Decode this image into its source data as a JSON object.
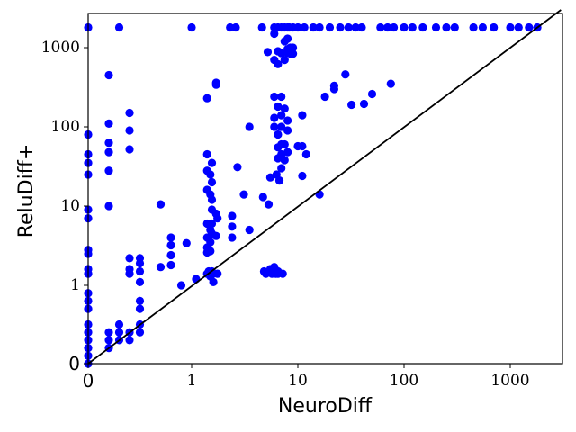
{
  "chart_data": {
    "type": "scatter",
    "title": "",
    "xlabel": "NeuroDiff",
    "ylabel": "ReluDiff+",
    "xscale": "symlog-style (linear 0 to 1, log above 1)",
    "yscale": "symlog-style (linear 0 to 1, log above 1)",
    "xlim": [
      0,
      3000
    ],
    "ylim": [
      0,
      3000
    ],
    "x_ticks": [
      "0",
      "1",
      "10",
      "100",
      "1000"
    ],
    "y_ticks": [
      "0",
      "1",
      "10",
      "100",
      "1000"
    ],
    "grid": false,
    "legend": "none",
    "reference_line": "y = x",
    "reference_line_color": "#000000",
    "point_color": "#0000ff",
    "series": [
      {
        "values": [
          [
            0,
            1800
          ],
          [
            0,
            80
          ],
          [
            0,
            45
          ],
          [
            0,
            35
          ],
          [
            0,
            25
          ],
          [
            0,
            9
          ],
          [
            0,
            7
          ],
          [
            0,
            2.8
          ],
          [
            0,
            2.5
          ],
          [
            0,
            1.6
          ],
          [
            0,
            1.4
          ],
          [
            0,
            0.9
          ],
          [
            0,
            0.8
          ],
          [
            0,
            0.7
          ],
          [
            0,
            0.5
          ],
          [
            0,
            0.4
          ],
          [
            0,
            0.3
          ],
          [
            0,
            0.2
          ],
          [
            0,
            0.1
          ],
          [
            0,
            0
          ],
          [
            0.2,
            450
          ],
          [
            0.2,
            110
          ],
          [
            0.2,
            63
          ],
          [
            0.2,
            48
          ],
          [
            0.2,
            28
          ],
          [
            0.2,
            10
          ],
          [
            0.2,
            0.4
          ],
          [
            0.2,
            0.3
          ],
          [
            0.2,
            0.2
          ],
          [
            0.3,
            1800
          ],
          [
            0.3,
            0.5
          ],
          [
            0.3,
            0.4
          ],
          [
            0.3,
            0.3
          ],
          [
            0.4,
            150
          ],
          [
            0.4,
            90
          ],
          [
            0.4,
            52
          ],
          [
            0.4,
            2.2
          ],
          [
            0.4,
            1.6
          ],
          [
            0.4,
            1.4
          ],
          [
            0.4,
            0.4
          ],
          [
            0.4,
            0.3
          ],
          [
            0.5,
            2.2
          ],
          [
            0.5,
            1.9
          ],
          [
            0.5,
            1.5
          ],
          [
            0.5,
            1.1
          ],
          [
            0.5,
            0.8
          ],
          [
            0.5,
            0.7
          ],
          [
            0.5,
            0.5
          ],
          [
            0.5,
            0.4
          ],
          [
            0.7,
            10.5
          ],
          [
            0.7,
            1.7
          ],
          [
            0.8,
            4
          ],
          [
            0.8,
            3.2
          ],
          [
            0.8,
            2.4
          ],
          [
            0.8,
            1.8
          ],
          [
            0.9,
            1
          ],
          [
            0.95,
            3.4
          ],
          [
            1,
            1800
          ],
          [
            1.1,
            1.2
          ],
          [
            1.4,
            230
          ],
          [
            1.4,
            45
          ],
          [
            1.4,
            28
          ],
          [
            1.4,
            16
          ],
          [
            1.4,
            6
          ],
          [
            1.4,
            4
          ],
          [
            1.4,
            3
          ],
          [
            1.4,
            2.6
          ],
          [
            1.4,
            1.4
          ],
          [
            1.45,
            1.5
          ],
          [
            1.5,
            25
          ],
          [
            1.5,
            14
          ],
          [
            1.5,
            5
          ],
          [
            1.5,
            3.5
          ],
          [
            1.5,
            2.7
          ],
          [
            1.5,
            1.3
          ],
          [
            1.55,
            35
          ],
          [
            1.55,
            20
          ],
          [
            1.55,
            12
          ],
          [
            1.55,
            9
          ],
          [
            1.55,
            6
          ],
          [
            1.55,
            4.5
          ],
          [
            1.55,
            1.5
          ],
          [
            1.6,
            1.4
          ],
          [
            1.6,
            1.1
          ],
          [
            1.7,
            360
          ],
          [
            1.7,
            340
          ],
          [
            1.7,
            8
          ],
          [
            1.7,
            4.2
          ],
          [
            1.75,
            1.4
          ],
          [
            1.75,
            7
          ],
          [
            2.3,
            1800
          ],
          [
            2.4,
            7.5
          ],
          [
            2.4,
            5.5
          ],
          [
            2.4,
            4
          ],
          [
            2.6,
            1800
          ],
          [
            2.7,
            31
          ],
          [
            3.1,
            14
          ],
          [
            3.5,
            100
          ],
          [
            3.5,
            5
          ],
          [
            4.6,
            1800
          ],
          [
            4.7,
            13
          ],
          [
            4.8,
            1.5
          ],
          [
            5,
            1.4
          ],
          [
            5.2,
            880
          ],
          [
            5.3,
            10.5
          ],
          [
            5.5,
            23
          ],
          [
            5.5,
            1.6
          ],
          [
            5.7,
            1.4
          ],
          [
            5.8,
            1.5
          ],
          [
            6,
            1800
          ],
          [
            6,
            1500
          ],
          [
            6,
            700
          ],
          [
            6,
            240
          ],
          [
            6,
            130
          ],
          [
            6,
            100
          ],
          [
            6,
            1.7
          ],
          [
            6.2,
            1.4
          ],
          [
            6.5,
            1.5
          ],
          [
            6.3,
            25
          ],
          [
            6.5,
            1800
          ],
          [
            6.5,
            900
          ],
          [
            6.5,
            620
          ],
          [
            6.5,
            180
          ],
          [
            6.5,
            80
          ],
          [
            6.5,
            55
          ],
          [
            6.5,
            40
          ],
          [
            6.5,
            1.4
          ],
          [
            6.7,
            21
          ],
          [
            7,
            1800
          ],
          [
            7,
            850
          ],
          [
            7,
            240
          ],
          [
            7,
            140
          ],
          [
            7,
            100
          ],
          [
            7,
            60
          ],
          [
            7,
            45
          ],
          [
            7,
            30
          ],
          [
            7.2,
            1.4
          ],
          [
            7.5,
            1800
          ],
          [
            7.5,
            1200
          ],
          [
            7.5,
            700
          ],
          [
            7.5,
            170
          ],
          [
            7.5,
            60
          ],
          [
            7.5,
            38
          ],
          [
            8,
            1800
          ],
          [
            8,
            1300
          ],
          [
            8,
            960
          ],
          [
            8,
            860
          ],
          [
            8,
            120
          ],
          [
            8,
            90
          ],
          [
            8,
            48
          ],
          [
            8.3,
            1800
          ],
          [
            8.5,
            1000
          ],
          [
            8.5,
            840
          ],
          [
            9,
            1800
          ],
          [
            9,
            1000
          ],
          [
            9,
            840
          ],
          [
            10,
            1800
          ],
          [
            10,
            57
          ],
          [
            11,
            57
          ],
          [
            11,
            140
          ],
          [
            11,
            24
          ],
          [
            11.5,
            1800
          ],
          [
            12,
            45
          ],
          [
            14,
            1800
          ],
          [
            16,
            1800
          ],
          [
            16,
            14
          ],
          [
            18,
            240
          ],
          [
            20,
            1800
          ],
          [
            22,
            300
          ],
          [
            22,
            330
          ],
          [
            25,
            1800
          ],
          [
            28,
            460
          ],
          [
            30,
            1800
          ],
          [
            32,
            190
          ],
          [
            35,
            1800
          ],
          [
            40,
            1800
          ],
          [
            42,
            195
          ],
          [
            50,
            260
          ],
          [
            60,
            1800
          ],
          [
            70,
            1800
          ],
          [
            75,
            350
          ],
          [
            80,
            1800
          ],
          [
            100,
            1800
          ],
          [
            120,
            1800
          ],
          [
            150,
            1800
          ],
          [
            200,
            1800
          ],
          [
            250,
            1800
          ],
          [
            300,
            1800
          ],
          [
            450,
            1800
          ],
          [
            550,
            1800
          ],
          [
            700,
            1800
          ],
          [
            1000,
            1800
          ],
          [
            1200,
            1800
          ],
          [
            1500,
            1800
          ],
          [
            1800,
            1800
          ]
        ]
      }
    ]
  }
}
